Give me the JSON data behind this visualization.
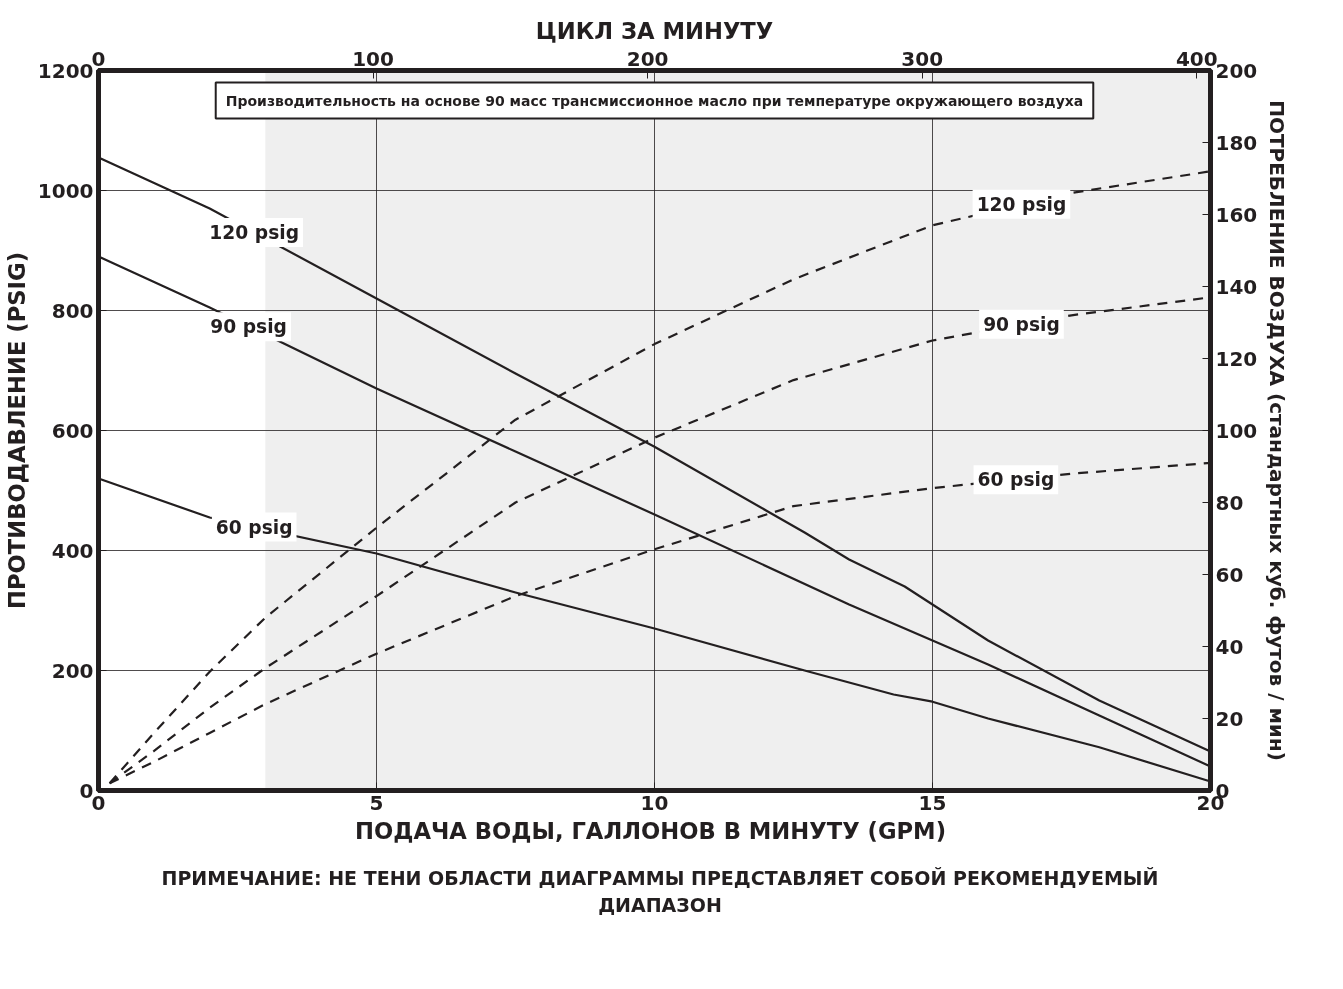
{
  "chart_data": {
    "type": "line",
    "xlabel": "ПОДАЧА ВОДЫ, ГАЛЛОНОВ  В МИНУТУ (GPM)",
    "ylabel": "ПРОТИВОДАВЛЕНИЕ (PSIG)",
    "y2label": "ПОТРЕБЛЕНИЕ ВОЗДУХА (стандартных куб. футов / мин)",
    "x2label": "ЦИКЛ ЗА МИНУТУ",
    "xlim": [
      0,
      20
    ],
    "xticks": [
      0,
      5,
      10,
      15,
      20
    ],
    "ylim": [
      0,
      1200
    ],
    "yticks": [
      0,
      200,
      400,
      600,
      800,
      1000,
      1200
    ],
    "y2lim": [
      0,
      200
    ],
    "y2ticks": [
      0,
      20,
      40,
      60,
      80,
      100,
      120,
      140,
      160,
      180,
      200
    ],
    "x2lim": [
      0,
      405
    ],
    "x2ticks": [
      0,
      100,
      200,
      300,
      400
    ],
    "grid": true,
    "bands": [
      {
        "axis": "x",
        "from": 3,
        "to": 20,
        "color": "#efefef"
      }
    ],
    "series": [
      {
        "color": "#231f20",
        "line_style": "solid",
        "x": [
          0,
          2,
          5,
          7.5,
          10,
          12.7,
          13.5,
          14.5,
          16,
          18,
          20
        ],
        "values": [
          1055,
          970,
          820,
          695,
          573,
          430,
          385,
          340,
          250,
          150,
          65
        ]
      },
      {
        "color": "#231f20",
        "line_style": "solid",
        "x": [
          0,
          2,
          5,
          7.5,
          10,
          13.5,
          15,
          16,
          18,
          20
        ],
        "values": [
          890,
          805,
          670,
          565,
          460,
          310,
          250,
          210,
          125,
          40
        ]
      },
      {
        "color": "#231f20",
        "line_style": "solid",
        "x": [
          0,
          2,
          5,
          7.5,
          10,
          12.7,
          14.3,
          15,
          16,
          18,
          20
        ],
        "values": [
          520,
          455,
          395,
          330,
          270,
          200,
          160,
          148,
          120,
          72,
          15
        ]
      },
      {
        "color": "#231f20",
        "line_style": "dashed",
        "axis": "y2",
        "x": [
          0.2,
          1,
          2,
          3,
          5,
          7.5,
          10,
          12.5,
          15,
          17.5,
          20
        ],
        "values": [
          2,
          16,
          33,
          48,
          73,
          103,
          124,
          142,
          157,
          166,
          172
        ]
      },
      {
        "color": "#231f20",
        "line_style": "dashed",
        "axis": "y2",
        "x": [
          0.2,
          1,
          2,
          3,
          5,
          7.5,
          10,
          12.5,
          15,
          17.5,
          20
        ],
        "values": [
          2,
          11,
          23,
          34,
          54,
          80,
          98,
          114,
          125,
          132,
          137
        ]
      },
      {
        "color": "#231f20",
        "line_style": "dashed",
        "axis": "y2",
        "x": [
          0.2,
          1,
          2,
          3,
          5,
          7.5,
          10,
          12.5,
          15,
          17.5,
          20
        ],
        "values": [
          2,
          8,
          16,
          24,
          38,
          54,
          67,
          79,
          84,
          88,
          91
        ]
      }
    ],
    "annotations": [
      "Производительность на основе 90 масс трансмиссионное масло при температуре окружающего воздуха",
      "ПРИМЕЧАНИЕ: НЕ ТЕНИ ОБЛАСТИ ДИАГРАММЫ ПРЕДСТАВЛЯЕТ СОБОЙ РЕКОМЕНДУЕМЫЙ ДИАПАЗОН",
      {
        "text": "120 psig",
        "x": 2.8,
        "y": 930
      },
      {
        "text": "90 psig",
        "x": 2.7,
        "y": 773
      },
      {
        "text": "60 psig",
        "x": 2.8,
        "y": 439
      },
      {
        "text": "120 psig",
        "x": 16.6,
        "y": 977
      },
      {
        "text": "90 psig",
        "x": 16.6,
        "y": 777
      },
      {
        "text": "60 psig",
        "x": 16.5,
        "y": 518
      }
    ]
  }
}
